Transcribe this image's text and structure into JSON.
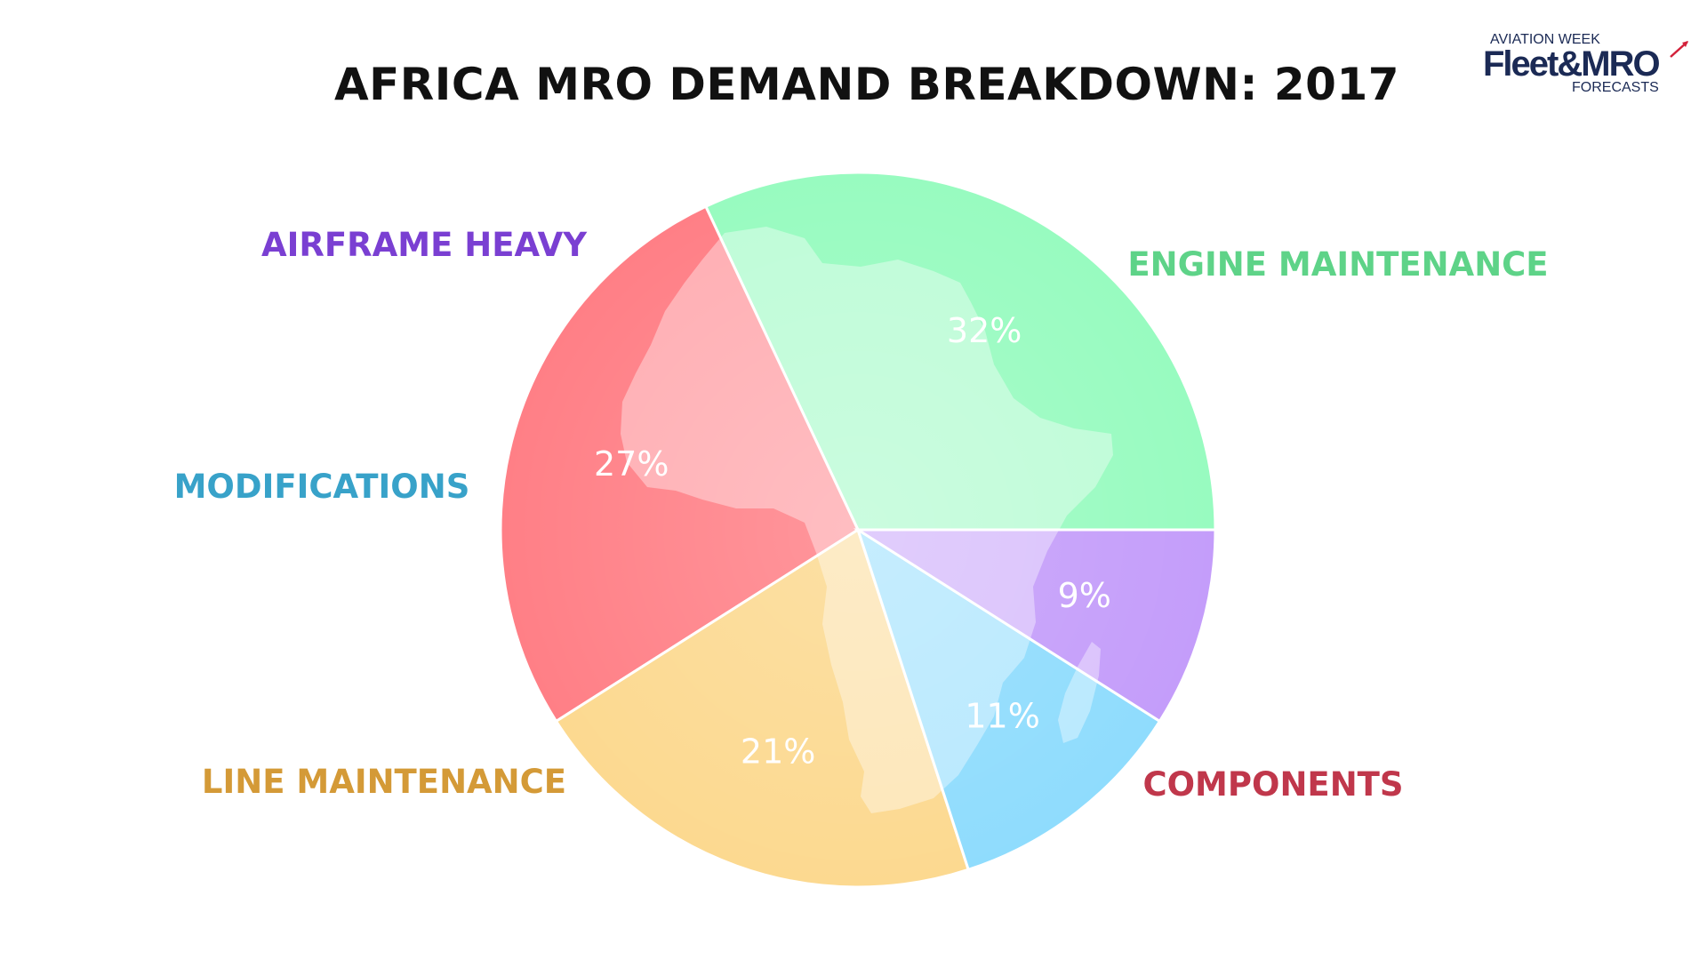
{
  "logo": {
    "line1": "AVIATION WEEK",
    "line2": "Fleet&MRO",
    "line3": "FORECASTS"
  },
  "chart_data": {
    "type": "pie",
    "title": "AFRICA MRO DEMAND BREAKDOWN: 2017",
    "slices": [
      {
        "name": "ENGINE MAINTENANCE",
        "value": 32,
        "label": "32%",
        "color": "#98fbc0",
        "label_color": "#5ed388"
      },
      {
        "name": "COMPONENTS",
        "value": 27,
        "label": "27%",
        "color": "#ff7f86",
        "label_color": "#c0374b"
      },
      {
        "name": "LINE MAINTENANCE",
        "value": 21,
        "label": "21%",
        "color": "#fcd990",
        "label_color": "#d49a37"
      },
      {
        "name": "MODIFICATIONS",
        "value": 11,
        "label": "11%",
        "color": "#8fdcfd",
        "label_color": "#38a2c9"
      },
      {
        "name": "AIRFRAME HEAVY",
        "value": 9,
        "label": "9%",
        "color": "#c49dfa",
        "label_color": "#7a3fd2"
      }
    ],
    "legend": "none"
  }
}
